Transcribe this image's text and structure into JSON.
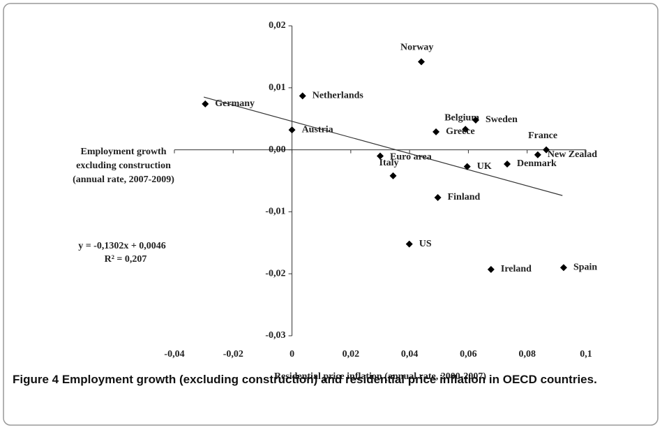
{
  "chart_data": {
    "type": "scatter",
    "xlabel": "Residential price inflation (annual rate, 2000-2007)",
    "ylabel": "Employment growth excluding construction (annual rate, 2007-2009)",
    "caption": "Figure 4 Employment growth (excluding construction) and residential price inflation in OECD countries.",
    "annotations": [
      "y = -0,1302x + 0,0046",
      "R² = 0,207"
    ],
    "color": "#000000",
    "labels": [
      "Germany",
      "Netherlands",
      "Austria",
      "Norway",
      "Belgium",
      "Sweden",
      "Greece",
      "France",
      "New Zealad",
      "Euro area",
      "Italy",
      "UK",
      "Denmark",
      "Finland",
      "US",
      "Ireland",
      "Spain"
    ],
    "x": [
      -0.0295,
      0.0036,
      0.0,
      0.044,
      0.059,
      0.0625,
      0.049,
      0.0865,
      0.0836,
      0.03,
      0.0344,
      0.0596,
      0.0732,
      0.0496,
      0.0399,
      0.0677,
      0.0924
    ],
    "values": [
      0.0074,
      0.0087,
      0.0032,
      0.0142,
      0.0033,
      0.0048,
      0.0029,
      0.0,
      -0.0008,
      -0.001,
      -0.0042,
      -0.0027,
      -0.0023,
      -0.0077,
      -0.0152,
      -0.0193,
      -0.019
    ],
    "trendline": {
      "slope": -0.1302,
      "intercept": 0.0046,
      "xrange": [
        -0.03,
        0.092
      ]
    },
    "xlim": [
      -0.04,
      0.1
    ],
    "ylim": [
      -0.03,
      0.02
    ],
    "xticks": [
      {
        "value": -0.04,
        "label": "-0,04"
      },
      {
        "value": -0.02,
        "label": "-0,02"
      },
      0,
      {
        "value": 0.02,
        "label": "0,02"
      },
      {
        "value": 0.04,
        "label": "0,04"
      },
      {
        "value": 0.06,
        "label": "0,06"
      },
      {
        "value": 0.08,
        "label": "0,08"
      },
      {
        "value": 0.1,
        "label": "0,1"
      }
    ],
    "yticks": [
      {
        "value": -0.03,
        "label": "-0,03"
      },
      {
        "value": -0.02,
        "label": "-0,02"
      },
      {
        "value": -0.01,
        "label": "-0,01"
      },
      {
        "value": 0,
        "label": "0,00"
      },
      {
        "value": 0.01,
        "label": "0,01"
      },
      {
        "value": 0.02,
        "label": "0,02"
      }
    ]
  }
}
